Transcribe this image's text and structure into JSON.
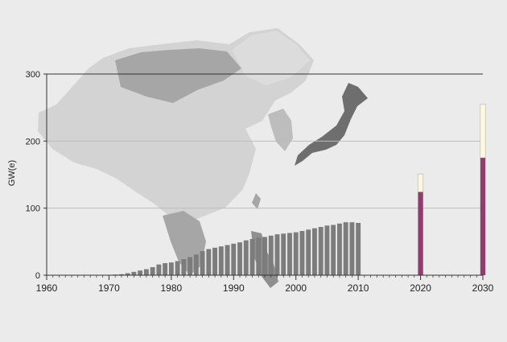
{
  "chart_data": {
    "type": "bar",
    "title": "",
    "xlabel": "",
    "ylabel": "GW(e)",
    "ylim": [
      0,
      300
    ],
    "xlim": [
      1960,
      2030
    ],
    "y_ticks": [
      0,
      100,
      200,
      300
    ],
    "x_ticks": [
      1960,
      1970,
      1980,
      1990,
      2000,
      2010,
      2020,
      2030
    ],
    "grid": true,
    "background_image": "map of East Asia (China, Mongolia, Korea, Japan, Southeast Asia)",
    "colors": {
      "historical_bar": "#7c7c7c",
      "projection_low": "#8e3d6e",
      "projection_high_increment": "#fbf8df",
      "grid": "#bdbdbd",
      "axis": "#333333"
    },
    "historical": {
      "x": [
        1970,
        1971,
        1972,
        1973,
        1974,
        1975,
        1976,
        1977,
        1978,
        1979,
        1980,
        1981,
        1982,
        1983,
        1984,
        1985,
        1986,
        1987,
        1988,
        1989,
        1990,
        1991,
        1992,
        1993,
        1994,
        1995,
        1996,
        1997,
        1998,
        1999,
        2000,
        2001,
        2002,
        2003,
        2004,
        2005,
        2006,
        2007,
        2008,
        2009,
        2010
      ],
      "values": [
        0.5,
        1,
        1.5,
        3,
        5,
        7,
        9,
        12,
        16,
        18,
        19,
        21,
        24,
        27,
        31,
        36,
        39,
        41,
        43,
        45,
        47,
        49,
        52,
        54,
        56,
        57,
        59,
        61,
        62,
        63,
        64,
        66,
        68,
        70,
        72,
        74,
        75,
        77,
        79,
        79,
        78
      ]
    },
    "projections": [
      {
        "x": 2020,
        "low": 124,
        "high": 151
      },
      {
        "x": 2030,
        "low": 175,
        "high": 255
      }
    ]
  }
}
